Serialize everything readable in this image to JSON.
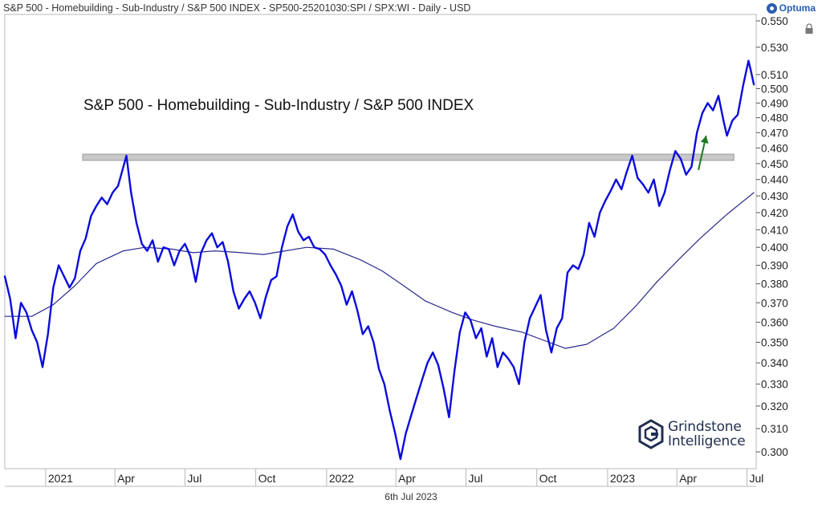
{
  "header": {
    "title": "S&P 500 - Homebuilding - Sub-Industry / S&P 500 INDEX - SP500-25201030:SPI / SPX:WI - Daily - USD",
    "brand": "Optuma"
  },
  "footer": {
    "date": "6th Jul 2023"
  },
  "logo": {
    "line1": "Grindstone",
    "line2": "Intelligence"
  },
  "colors": {
    "price": "#0b0bdc",
    "moving_average": "#2a2a8c",
    "arrow": "#1e7a1e",
    "resistance": "#c8c8c8"
  },
  "chart_data": {
    "type": "line",
    "title": "S&P 500 - Homebuilding - Sub-Industry / S&P 500 INDEX",
    "ylim": [
      0.293,
      0.555
    ],
    "y_scale": "log",
    "y_ticks": [
      0.3,
      0.31,
      0.32,
      0.33,
      0.34,
      0.35,
      0.36,
      0.37,
      0.38,
      0.39,
      0.4,
      0.41,
      0.42,
      0.43,
      0.44,
      0.45,
      0.46,
      0.47,
      0.48,
      0.49,
      0.5,
      0.51,
      0.53,
      0.55
    ],
    "y_tick_labels": [
      "0.300",
      "0.310",
      "0.320",
      "0.330",
      "0.340",
      "0.350",
      "0.360",
      "0.370",
      "0.380",
      "0.390",
      "0.400",
      "0.410",
      "0.420",
      "0.430",
      "0.440",
      "0.450",
      "0.460",
      "0.470",
      "0.480",
      "0.490",
      "0.500",
      "0.510",
      "0.530",
      "0.550"
    ],
    "xlim": [
      "2020-11-09",
      "2023-07-13"
    ],
    "x_ticks": [
      {
        "date": "2021-01-01",
        "label": "2021"
      },
      {
        "date": "2021-04-01",
        "label": "Apr"
      },
      {
        "date": "2021-07-01",
        "label": "Jul"
      },
      {
        "date": "2021-10-01",
        "label": "Oct"
      },
      {
        "date": "2022-01-01",
        "label": "2022"
      },
      {
        "date": "2022-04-01",
        "label": "Apr"
      },
      {
        "date": "2022-07-01",
        "label": "Jul"
      },
      {
        "date": "2022-10-01",
        "label": "Oct"
      },
      {
        "date": "2023-01-01",
        "label": "2023"
      },
      {
        "date": "2023-04-01",
        "label": "Apr"
      },
      {
        "date": "2023-07-01",
        "label": "Jul"
      }
    ],
    "resistance_zone": {
      "x_start": "2020-11-09",
      "x_end": "2023-06-14",
      "y_low": 0.452,
      "y_high": 0.456
    },
    "series": [
      {
        "type": "line",
        "points": [
          [
            "2020-11-09",
            0.384
          ],
          [
            "2020-11-16",
            0.372
          ],
          [
            "2020-11-23",
            0.352
          ],
          [
            "2020-11-30",
            0.37
          ],
          [
            "2020-12-07",
            0.365
          ],
          [
            "2020-12-14",
            0.356
          ],
          [
            "2020-12-21",
            0.35
          ],
          [
            "2020-12-28",
            0.338
          ],
          [
            "2021-01-04",
            0.354
          ],
          [
            "2021-01-11",
            0.378
          ],
          [
            "2021-01-18",
            0.39
          ],
          [
            "2021-01-25",
            0.384
          ],
          [
            "2021-02-01",
            0.378
          ],
          [
            "2021-02-08",
            0.383
          ],
          [
            "2021-02-15",
            0.398
          ],
          [
            "2021-02-22",
            0.405
          ],
          [
            "2021-03-01",
            0.418
          ],
          [
            "2021-03-08",
            0.424
          ],
          [
            "2021-03-15",
            0.429
          ],
          [
            "2021-03-22",
            0.425
          ],
          [
            "2021-03-29",
            0.432
          ],
          [
            "2021-04-05",
            0.436
          ],
          [
            "2021-04-12",
            0.448
          ],
          [
            "2021-04-16",
            0.455
          ],
          [
            "2021-04-22",
            0.432
          ],
          [
            "2021-04-29",
            0.414
          ],
          [
            "2021-05-06",
            0.402
          ],
          [
            "2021-05-13",
            0.398
          ],
          [
            "2021-05-20",
            0.404
          ],
          [
            "2021-05-27",
            0.392
          ],
          [
            "2021-06-03",
            0.4
          ],
          [
            "2021-06-10",
            0.399
          ],
          [
            "2021-06-17",
            0.39
          ],
          [
            "2021-06-24",
            0.398
          ],
          [
            "2021-07-01",
            0.402
          ],
          [
            "2021-07-08",
            0.395
          ],
          [
            "2021-07-15",
            0.381
          ],
          [
            "2021-07-22",
            0.397
          ],
          [
            "2021-07-29",
            0.404
          ],
          [
            "2021-08-05",
            0.408
          ],
          [
            "2021-08-12",
            0.4
          ],
          [
            "2021-08-19",
            0.403
          ],
          [
            "2021-08-26",
            0.392
          ],
          [
            "2021-09-02",
            0.376
          ],
          [
            "2021-09-09",
            0.367
          ],
          [
            "2021-09-16",
            0.372
          ],
          [
            "2021-09-23",
            0.376
          ],
          [
            "2021-09-30",
            0.37
          ],
          [
            "2021-10-07",
            0.362
          ],
          [
            "2021-10-14",
            0.373
          ],
          [
            "2021-10-21",
            0.382
          ],
          [
            "2021-10-28",
            0.384
          ],
          [
            "2021-11-04",
            0.4
          ],
          [
            "2021-11-11",
            0.412
          ],
          [
            "2021-11-18",
            0.419
          ],
          [
            "2021-11-25",
            0.409
          ],
          [
            "2021-12-02",
            0.404
          ],
          [
            "2021-12-09",
            0.406
          ],
          [
            "2021-12-16",
            0.4
          ],
          [
            "2021-12-23",
            0.399
          ],
          [
            "2021-12-30",
            0.396
          ],
          [
            "2022-01-06",
            0.39
          ],
          [
            "2022-01-13",
            0.385
          ],
          [
            "2022-01-20",
            0.379
          ],
          [
            "2022-01-27",
            0.369
          ],
          [
            "2022-02-03",
            0.376
          ],
          [
            "2022-02-10",
            0.366
          ],
          [
            "2022-02-17",
            0.354
          ],
          [
            "2022-02-24",
            0.358
          ],
          [
            "2022-03-03",
            0.35
          ],
          [
            "2022-03-10",
            0.337
          ],
          [
            "2022-03-17",
            0.33
          ],
          [
            "2022-03-24",
            0.318
          ],
          [
            "2022-03-31",
            0.308
          ],
          [
            "2022-04-07",
            0.297
          ],
          [
            "2022-04-14",
            0.308
          ],
          [
            "2022-04-21",
            0.316
          ],
          [
            "2022-04-28",
            0.324
          ],
          [
            "2022-05-05",
            0.332
          ],
          [
            "2022-05-12",
            0.34
          ],
          [
            "2022-05-19",
            0.345
          ],
          [
            "2022-05-26",
            0.339
          ],
          [
            "2022-06-02",
            0.328
          ],
          [
            "2022-06-09",
            0.315
          ],
          [
            "2022-06-16",
            0.336
          ],
          [
            "2022-06-23",
            0.355
          ],
          [
            "2022-06-30",
            0.365
          ],
          [
            "2022-07-07",
            0.361
          ],
          [
            "2022-07-14",
            0.352
          ],
          [
            "2022-07-21",
            0.357
          ],
          [
            "2022-07-28",
            0.343
          ],
          [
            "2022-08-04",
            0.352
          ],
          [
            "2022-08-11",
            0.338
          ],
          [
            "2022-08-18",
            0.345
          ],
          [
            "2022-08-25",
            0.342
          ],
          [
            "2022-09-01",
            0.338
          ],
          [
            "2022-09-08",
            0.33
          ],
          [
            "2022-09-15",
            0.35
          ],
          [
            "2022-09-22",
            0.362
          ],
          [
            "2022-09-29",
            0.368
          ],
          [
            "2022-10-06",
            0.374
          ],
          [
            "2022-10-13",
            0.356
          ],
          [
            "2022-10-20",
            0.345
          ],
          [
            "2022-10-27",
            0.357
          ],
          [
            "2022-11-03",
            0.362
          ],
          [
            "2022-11-10",
            0.386
          ],
          [
            "2022-11-17",
            0.39
          ],
          [
            "2022-11-24",
            0.388
          ],
          [
            "2022-12-01",
            0.396
          ],
          [
            "2022-12-08",
            0.414
          ],
          [
            "2022-12-15",
            0.406
          ],
          [
            "2022-12-22",
            0.42
          ],
          [
            "2022-12-29",
            0.427
          ],
          [
            "2023-01-05",
            0.433
          ],
          [
            "2023-01-12",
            0.44
          ],
          [
            "2023-01-19",
            0.434
          ],
          [
            "2023-01-26",
            0.445
          ],
          [
            "2023-02-02",
            0.455
          ],
          [
            "2023-02-09",
            0.441
          ],
          [
            "2023-02-16",
            0.437
          ],
          [
            "2023-02-23",
            0.432
          ],
          [
            "2023-03-02",
            0.44
          ],
          [
            "2023-03-09",
            0.424
          ],
          [
            "2023-03-16",
            0.432
          ],
          [
            "2023-03-23",
            0.446
          ],
          [
            "2023-03-30",
            0.458
          ],
          [
            "2023-04-06",
            0.453
          ],
          [
            "2023-04-13",
            0.443
          ],
          [
            "2023-04-20",
            0.448
          ],
          [
            "2023-04-27",
            0.47
          ],
          [
            "2023-05-04",
            0.483
          ],
          [
            "2023-05-11",
            0.49
          ],
          [
            "2023-05-18",
            0.485
          ],
          [
            "2023-05-25",
            0.495
          ],
          [
            "2023-06-01",
            0.477
          ],
          [
            "2023-06-05",
            0.468
          ],
          [
            "2023-06-12",
            0.478
          ],
          [
            "2023-06-19",
            0.482
          ],
          [
            "2023-06-26",
            0.502
          ],
          [
            "2023-07-03",
            0.52
          ],
          [
            "2023-07-06",
            0.513
          ],
          [
            "2023-07-10",
            0.503
          ]
        ]
      },
      {
        "type": "line",
        "points": [
          [
            "2020-11-09",
            0.363
          ],
          [
            "2020-12-14",
            0.363
          ],
          [
            "2021-01-11",
            0.369
          ],
          [
            "2021-02-08",
            0.379
          ],
          [
            "2021-03-08",
            0.391
          ],
          [
            "2021-04-12",
            0.398
          ],
          [
            "2021-05-10",
            0.4
          ],
          [
            "2021-06-14",
            0.399
          ],
          [
            "2021-07-12",
            0.397
          ],
          [
            "2021-08-09",
            0.398
          ],
          [
            "2021-09-13",
            0.397
          ],
          [
            "2021-10-11",
            0.396
          ],
          [
            "2021-11-08",
            0.398
          ],
          [
            "2021-12-06",
            0.4
          ],
          [
            "2022-01-10",
            0.399
          ],
          [
            "2022-02-14",
            0.393
          ],
          [
            "2022-03-14",
            0.387
          ],
          [
            "2022-04-11",
            0.379
          ],
          [
            "2022-05-09",
            0.371
          ],
          [
            "2022-06-13",
            0.365
          ],
          [
            "2022-07-11",
            0.361
          ],
          [
            "2022-08-08",
            0.358
          ],
          [
            "2022-09-12",
            0.355
          ],
          [
            "2022-10-10",
            0.351
          ],
          [
            "2022-11-07",
            0.347
          ],
          [
            "2022-12-05",
            0.349
          ],
          [
            "2023-01-09",
            0.357
          ],
          [
            "2023-02-06",
            0.368
          ],
          [
            "2023-03-06",
            0.381
          ],
          [
            "2023-04-03",
            0.393
          ],
          [
            "2023-05-01",
            0.405
          ],
          [
            "2023-06-05",
            0.419
          ],
          [
            "2023-07-10",
            0.432
          ]
        ]
      }
    ],
    "annotations": [
      {
        "type": "arrow",
        "from": [
          "2023-04-29",
          0.446
        ],
        "to": [
          "2023-05-09",
          0.468
        ]
      }
    ]
  }
}
